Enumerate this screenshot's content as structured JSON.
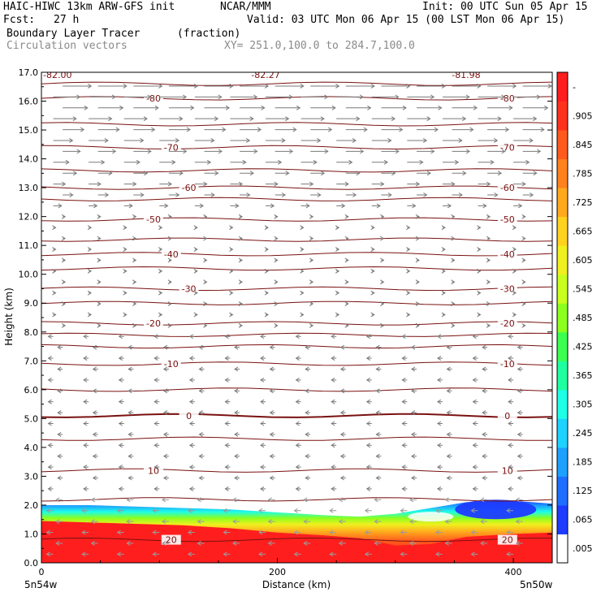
{
  "header": {
    "model": "HAIC-HIWC 13km ARW-GFS init",
    "org": "NCAR/MMM",
    "init": "Init: 00 UTC Sun 05 Apr 15",
    "fcst_label": "Fcst:",
    "fcst_value": "27 h",
    "valid": "Valid: 03 UTC Mon 06 Apr 15 (00 LST Mon 06 Apr 15)",
    "field": "Boundary Layer Tracer",
    "units": "(fraction)",
    "overlay": "Circulation vectors",
    "xsec": "XY= 251.0,100.0 to 284.7,100.0"
  },
  "chart_data": {
    "type": "heatmap",
    "xlabel": "Distance (km)",
    "ylabel": "Height (km)",
    "xlim": [
      0,
      433
    ],
    "ylim": [
      0,
      17
    ],
    "x_ticks": [
      0,
      200,
      400
    ],
    "y_ticks": [
      "0.0",
      "1.0",
      "2.0",
      "3.0",
      "4.0",
      "5.0",
      "6.0",
      "7.0",
      "8.0",
      "9.0",
      "10.0",
      "11.0",
      "12.0",
      "13.0",
      "14.0",
      "15.0",
      "16.0",
      "17.0"
    ],
    "endpoints": {
      "left": "5n54w",
      "right": "5n50w"
    },
    "colorbar": {
      "labels": [
        ".005",
        ".065",
        ".125",
        ".185",
        ".245",
        ".305",
        ".365",
        ".425",
        ".485",
        ".545",
        ".605",
        ".665",
        ".725",
        ".785",
        ".845",
        ".905",
        "-"
      ],
      "colors": [
        "#ffffff",
        "#1e3cff",
        "#1e6eff",
        "#1ea0ff",
        "#1ed2ff",
        "#1effe6",
        "#1effa0",
        "#3cff50",
        "#8cff1e",
        "#c8ff1e",
        "#f0f01e",
        "#ffd21e",
        "#ffaa1e",
        "#ff821e",
        "#ff5a1e",
        "#ff321e",
        "#ff1e1e"
      ]
    },
    "tracer_layer": {
      "top_km": [
        2.0,
        2.0,
        1.95,
        1.9,
        1.85,
        1.75,
        1.65,
        1.6,
        1.7,
        1.9,
        2.1,
        2.15,
        2.05
      ],
      "x_km": [
        0,
        40,
        80,
        120,
        160,
        200,
        240,
        270,
        300,
        330,
        360,
        400,
        433
      ],
      "red_top_km": [
        1.45,
        1.4,
        1.35,
        1.3,
        1.2,
        1.05,
        0.95,
        0.85,
        0.6,
        0.65,
        0.9,
        1.0,
        1.05
      ]
    },
    "temperature_contours": [
      {
        "label": "-80",
        "height_km": 16.1
      },
      {
        "label": "-70",
        "height_km": 14.4
      },
      {
        "label": "-60",
        "height_km": 13.0
      },
      {
        "label": "-50",
        "height_km": 11.9
      },
      {
        "label": "-40",
        "height_km": 10.7
      },
      {
        "label": "-30",
        "height_km": 9.5
      },
      {
        "label": "-20",
        "height_km": 8.3
      },
      {
        "label": "-10",
        "height_km": 6.9
      },
      {
        "label": "0",
        "height_km": 5.1
      },
      {
        "label": "10",
        "height_km": 3.2
      },
      {
        "label": "20",
        "height_km": 0.8
      }
    ],
    "unlabeled_contours_km": [
      16.6,
      15.2,
      13.6,
      12.6,
      11.2,
      10.2,
      9.0,
      7.9,
      7.5,
      6.0,
      4.3,
      2.2
    ],
    "top_labels": [
      "-82.00",
      "-82.27",
      "-81.98"
    ]
  }
}
